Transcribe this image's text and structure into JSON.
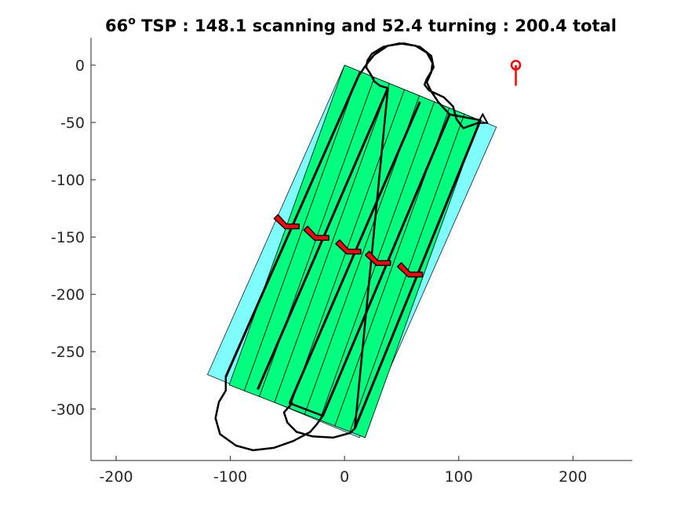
{
  "chart_data": {
    "type": "scatter",
    "title": {
      "angle": "66",
      "degree_symbol": "o",
      "text": " TSP : 148.1 scanning and 52.4 turning : 200.4 total"
    },
    "xlabel": "",
    "ylabel": "",
    "xlim": [
      -222,
      252
    ],
    "ylim": [
      -345,
      24
    ],
    "x_ticks": [
      -200,
      -100,
      0,
      100,
      200
    ],
    "x_tick_labels": [
      "-200",
      "-100",
      "0",
      "100",
      "200"
    ],
    "y_ticks": [
      0,
      -50,
      -100,
      -150,
      -200,
      -250,
      -300
    ],
    "y_tick_labels": [
      "0",
      "-50",
      "-100",
      "-150",
      "-200",
      "-250",
      "-300"
    ],
    "grid": false,
    "colors": {
      "region_fill": "#7ffcfc",
      "strip_fill": "#00ff7f",
      "path": "#000000",
      "markers": "#ff0000",
      "axes": "#262626"
    },
    "region_polygon": [
      [
        -120,
        -270
      ],
      [
        0,
        0
      ],
      [
        133,
        -54
      ],
      [
        13,
        -325
      ]
    ],
    "strip_corners": [
      [
        -101,
        -279
      ],
      [
        0,
        0
      ],
      [
        118,
        -48
      ],
      [
        18,
        -325
      ]
    ],
    "strip_count": 9,
    "scan_lines": [
      [
        [
          -104,
          -272
        ],
        [
          12,
          -10
        ]
      ],
      [
        [
          -76,
          -283
        ],
        [
          38,
          -20
        ]
      ],
      [
        [
          -48,
          -295
        ],
        [
          66,
          -32
        ]
      ],
      [
        [
          -19,
          -306
        ],
        [
          92,
          -43
        ]
      ],
      [
        [
          9,
          -317
        ],
        [
          119,
          -48
        ]
      ]
    ],
    "turn_path": [
      [
        12,
        -10
      ],
      [
        18,
        -1
      ],
      [
        26,
        9
      ],
      [
        38,
        17
      ],
      [
        52,
        19
      ],
      [
        66,
        16
      ],
      [
        76,
        8
      ],
      [
        78,
        -2
      ],
      [
        72,
        -12
      ],
      [
        70,
        -17
      ],
      [
        74,
        -22
      ],
      [
        87,
        -28
      ],
      [
        95,
        -36
      ],
      [
        98,
        -47
      ],
      [
        104,
        -55
      ],
      [
        118,
        -50
      ],
      [
        119,
        -48
      ],
      [
        92,
        -43
      ],
      [
        82,
        -32
      ],
      [
        76,
        -23
      ],
      [
        72,
        -15
      ],
      [
        76,
        -6
      ],
      [
        77,
        2
      ],
      [
        72,
        11
      ],
      [
        62,
        17
      ],
      [
        48,
        19
      ],
      [
        34,
        16
      ],
      [
        24,
        10
      ],
      [
        20,
        4
      ],
      [
        19,
        -2
      ],
      [
        23,
        -8
      ],
      [
        26,
        -14
      ],
      [
        31,
        -18
      ],
      [
        38,
        -20
      ],
      [
        9,
        -317
      ],
      [
        5,
        -321
      ],
      [
        -10,
        -325
      ],
      [
        -28,
        -324
      ],
      [
        -42,
        -320
      ],
      [
        -50,
        -312
      ],
      [
        -53,
        -303
      ],
      [
        -46,
        -295
      ],
      [
        -48,
        -295
      ],
      [
        -19,
        -306
      ],
      [
        -24,
        -313
      ],
      [
        -30,
        -320
      ],
      [
        -45,
        -328
      ],
      [
        -62,
        -334
      ],
      [
        -80,
        -336
      ],
      [
        -95,
        -332
      ],
      [
        -109,
        -322
      ],
      [
        -113,
        -308
      ],
      [
        -110,
        -294
      ],
      [
        -104,
        -284
      ],
      [
        -104,
        -272
      ]
    ],
    "turn_markers": [
      {
        "x": -48,
        "y": -140
      },
      {
        "x": -22,
        "y": -150
      },
      {
        "x": 6,
        "y": -162
      },
      {
        "x": 32,
        "y": -172
      },
      {
        "x": 60,
        "y": -182
      }
    ],
    "start_marker": {
      "x": 121,
      "y": -47
    },
    "point_marker": {
      "x": 150,
      "y": 0,
      "tail_y": -18
    }
  }
}
